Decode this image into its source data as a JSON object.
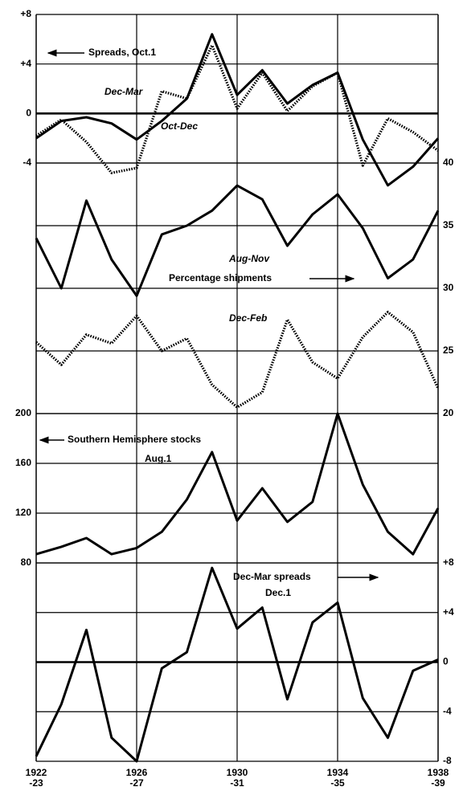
{
  "chart_data": {
    "type": "line",
    "categories": [
      "1922\n-23",
      null,
      null,
      null,
      "1926\n-27",
      null,
      null,
      null,
      "1930\n-31",
      null,
      null,
      null,
      "1934\n-35",
      null,
      null,
      null,
      "1938\n-39"
    ],
    "panels": [
      {
        "title": "Spreads, Oct.1",
        "ylim": [
          -4,
          8
        ],
        "yticks": [
          {
            "value": 8,
            "label": "+8"
          },
          {
            "value": 4,
            "label": "+4"
          },
          0,
          -4
        ],
        "series": [
          {
            "name": "Oct-Dec",
            "color": "#000000",
            "linestyle": "solid",
            "values": [
              -2.0,
              -0.6,
              -0.3,
              -0.8,
              -2.1,
              -0.6,
              1.2,
              6.4,
              1.5,
              3.5,
              0.8,
              2.3,
              3.3,
              -2.1,
              -5.8,
              -4.3,
              -2.0
            ]
          },
          {
            "name": "Dec-Mar",
            "color": "#000000",
            "linestyle": "dotted",
            "values": [
              -1.8,
              -0.5,
              -2.3,
              -4.8,
              -4.4,
              1.8,
              1.2,
              5.5,
              0.4,
              3.3,
              0.2,
              2.2,
              3.3,
              -4.2,
              -0.4,
              -1.5,
              -3.0
            ]
          }
        ]
      },
      {
        "title": "Percentage shipments",
        "ylim": [
          20,
          40
        ],
        "yticks": [
          40,
          35,
          30,
          25,
          20
        ],
        "series": [
          {
            "name": "Aug-Nov",
            "color": "#000000",
            "linestyle": "solid",
            "values": [
              34.0,
              30.0,
              37.0,
              32.3,
              29.4,
              34.3,
              35.0,
              36.2,
              38.2,
              37.1,
              33.4,
              35.9,
              37.5,
              34.8,
              30.8,
              32.3,
              36.2
            ]
          },
          {
            "name": "Dec-Feb",
            "color": "#000000",
            "linestyle": "dotted",
            "values": [
              25.7,
              23.9,
              26.3,
              25.6,
              27.8,
              25.0,
              26.0,
              22.3,
              20.5,
              21.7,
              27.5,
              24.1,
              22.8,
              26.1,
              28.1,
              26.5,
              22.0
            ]
          }
        ]
      },
      {
        "title": "Southern Hemisphere stocks",
        "subtitle": "Aug.1",
        "ylim": [
          80,
          200
        ],
        "yticks": [
          200,
          160,
          120,
          80
        ],
        "series": [
          {
            "color": "#000000",
            "linestyle": "solid",
            "values": [
              87,
              93,
              100,
              87,
              92,
              105,
              131,
              169,
              114,
              140,
              113,
              129,
              200,
              143,
              105,
              87,
              124
            ]
          }
        ]
      },
      {
        "title": "Dec-Mar spreads",
        "subtitle": "Dec.1",
        "ylim": [
          -8,
          8
        ],
        "yticks": [
          {
            "value": 8,
            "label": "+8"
          },
          {
            "value": 4,
            "label": "+4"
          },
          0,
          -4,
          -8
        ],
        "series": [
          {
            "color": "#000000",
            "linestyle": "solid",
            "values": [
              -7.6,
              -3.4,
              2.6,
              -6.1,
              -8.0,
              -0.5,
              0.8,
              7.6,
              2.7,
              4.4,
              -3.0,
              3.2,
              4.8,
              -2.9,
              -6.1,
              -0.7,
              0.2
            ]
          }
        ]
      }
    ]
  }
}
